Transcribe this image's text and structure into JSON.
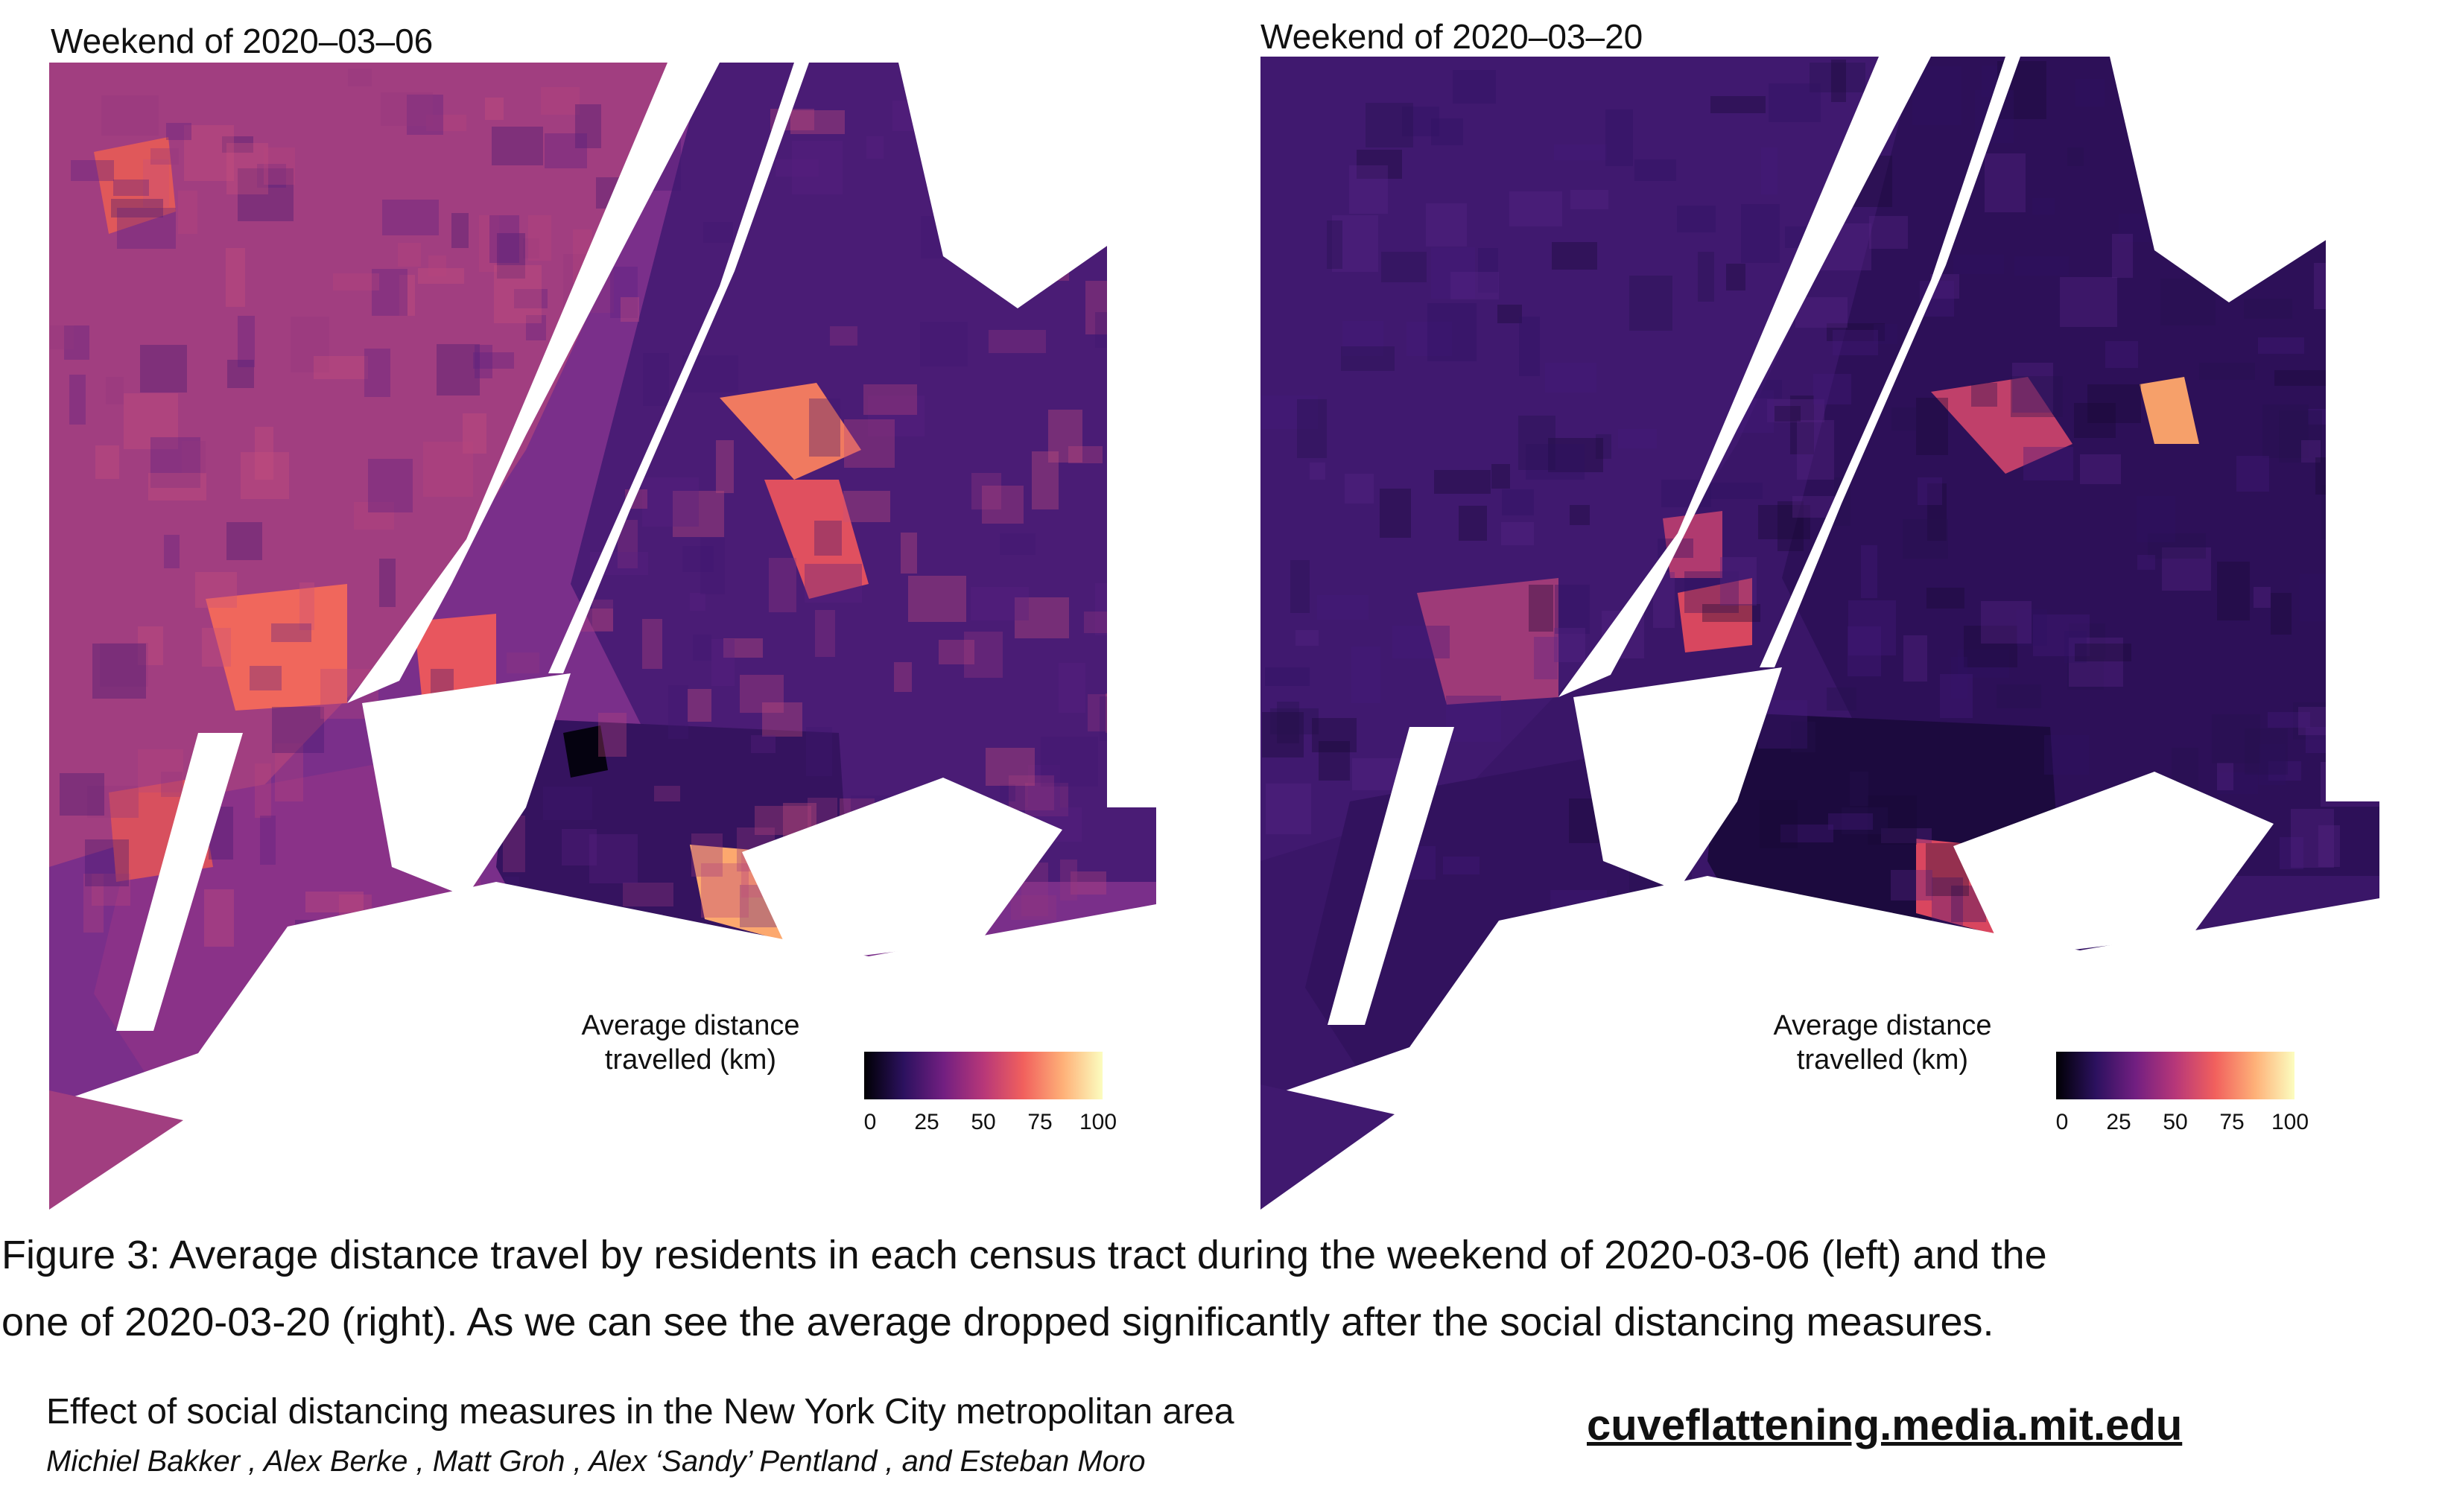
{
  "panels": [
    {
      "title": "Weekend of 2020–03–06",
      "land_color": "#7a2f8a",
      "water_color": "#ffffff",
      "legend": {
        "title_line1": "Average distance",
        "title_line2": "travelled (km)",
        "ticks": [
          "0",
          "25",
          "50",
          "75",
          "100"
        ]
      }
    },
    {
      "title": "Weekend of 2020–03–20",
      "land_color": "#3a1668",
      "water_color": "#ffffff",
      "legend": {
        "title_line1": "Average distance",
        "title_line2": "travelled (km)",
        "ticks": [
          "0",
          "25",
          "50",
          "75",
          "100"
        ]
      }
    }
  ],
  "colorscale": [
    "#000004",
    "#2c115f",
    "#721f81",
    "#b73779",
    "#f1605d",
    "#feb078",
    "#fcfdbf"
  ],
  "caption": {
    "line1": "Figure 3: Average distance travel by residents in each census tract during the weekend of 2020-03-06 (left) and the",
    "line2": "one of 2020-03-20 (right). As we can see the average dropped significantly after the social distancing measures."
  },
  "footer": {
    "subtitle": "Effect of social distancing measures in the New York City metropolitan area",
    "authors": "Michiel Bakker , Alex Berke , Matt Groh , Alex ‘Sandy’ Pentland , and Esteban Moro",
    "url": "cuveflattening.media.mit.edu"
  }
}
